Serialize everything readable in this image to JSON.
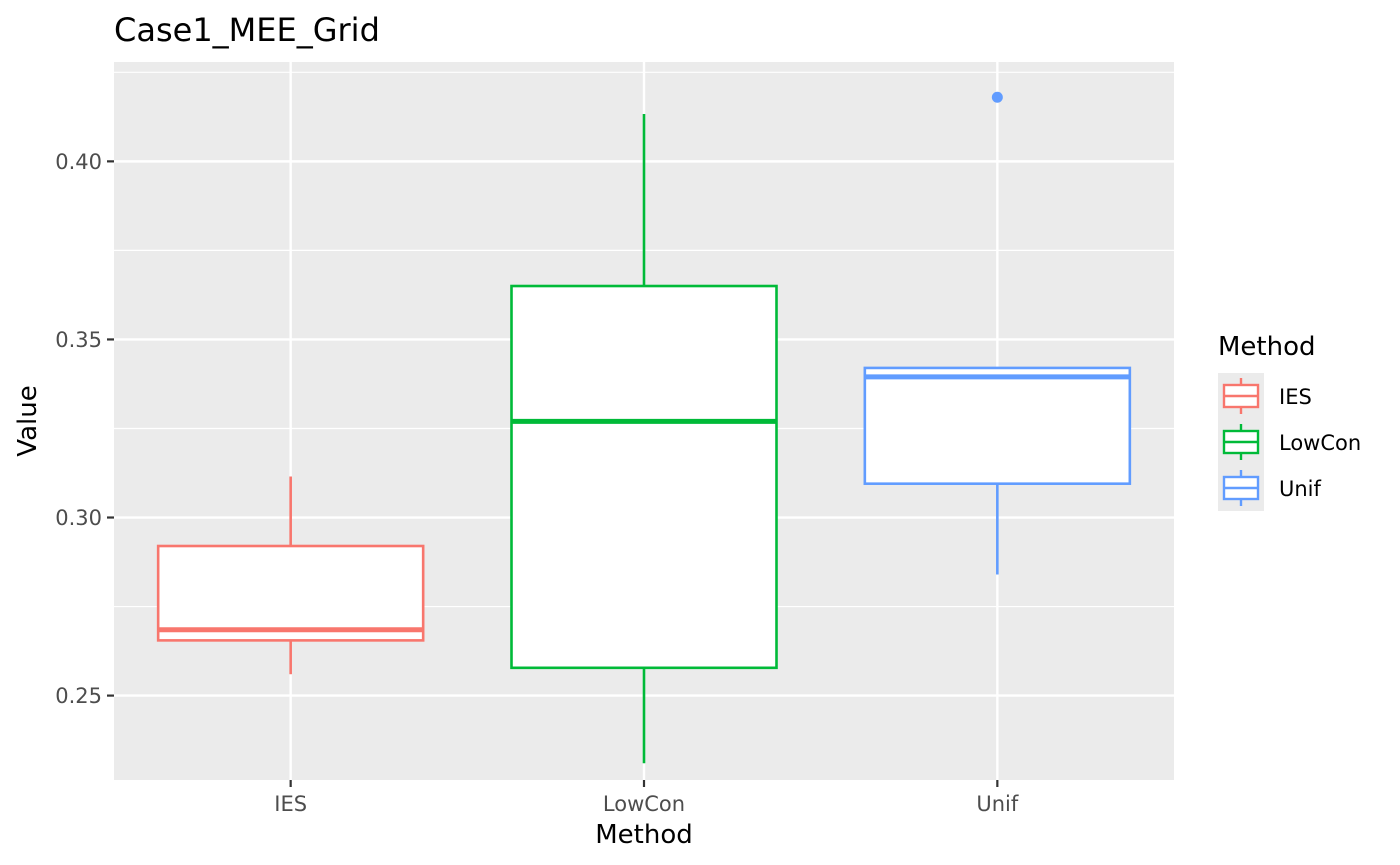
{
  "chart_data": {
    "type": "boxplot",
    "title": "Case1_MEE_Grid",
    "xlabel": "Method",
    "ylabel": "Value",
    "ylim": [
      0.2263,
      0.4279
    ],
    "y_ticks": [
      0.25,
      0.3,
      0.35,
      0.4
    ],
    "y_tick_labels": [
      "0.25",
      "0.30",
      "0.35",
      "0.40"
    ],
    "y_minor_ticks": [
      0.225,
      0.275,
      0.325,
      0.375,
      0.425
    ],
    "categories": [
      "IES",
      "LowCon",
      "Unif"
    ],
    "grid": true,
    "legend": {
      "title": "Method",
      "position": "right",
      "entries": [
        "IES",
        "LowCon",
        "Unif"
      ]
    },
    "series": [
      {
        "name": "IES",
        "color": "#F8766D",
        "lower_whisker": 0.256,
        "q1": 0.2655,
        "median": 0.2685,
        "q3": 0.292,
        "upper_whisker": 0.3115,
        "outliers": []
      },
      {
        "name": "LowCon",
        "color": "#00BA38",
        "lower_whisker": 0.231,
        "q1": 0.2578,
        "median": 0.327,
        "q3": 0.365,
        "upper_whisker": 0.4133,
        "outliers": []
      },
      {
        "name": "Unif",
        "color": "#619CFF",
        "lower_whisker": 0.284,
        "q1": 0.3095,
        "median": 0.3395,
        "q3": 0.342,
        "upper_whisker": 0.342,
        "outliers": [
          0.418
        ]
      }
    ],
    "colors": {
      "panel_background": "#EBEBEB",
      "grid": "#FFFFFF",
      "tick_label": "#4D4D4D",
      "tick_mark": "#333333"
    }
  }
}
